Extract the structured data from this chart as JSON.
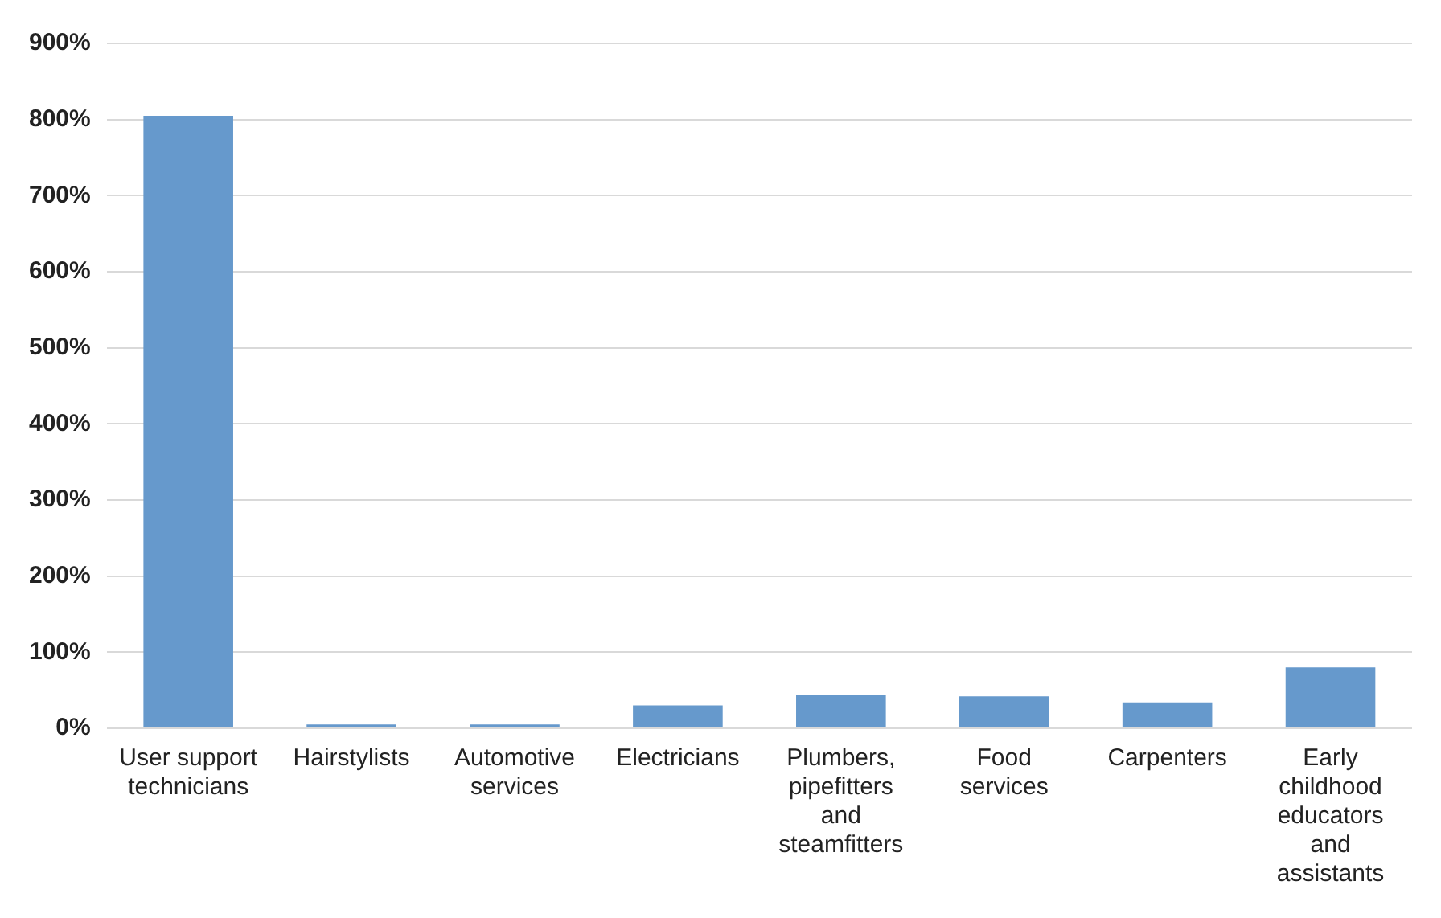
{
  "chart_data": {
    "type": "bar",
    "categories": [
      "User support technicians",
      "Hairstylists",
      "Automotive services",
      "Electricians",
      "Plumbers, pipefitters and steamfitters",
      "Food services",
      "Carpenters",
      "Early childhood educators and assistants"
    ],
    "values": [
      805,
      5,
      5,
      30,
      44,
      42,
      34,
      80
    ],
    "color": "#6699cc",
    "ylim": [
      0,
      900
    ],
    "yticks": [
      {
        "value": 0,
        "label": "0%"
      },
      {
        "value": 100,
        "label": "100%"
      },
      {
        "value": 200,
        "label": "200%"
      },
      {
        "value": 300,
        "label": "300%"
      },
      {
        "value": 400,
        "label": "400%"
      },
      {
        "value": 500,
        "label": "500%"
      },
      {
        "value": 600,
        "label": "600%"
      },
      {
        "value": 700,
        "label": "700%"
      },
      {
        "value": 800,
        "label": "800%"
      },
      {
        "value": 900,
        "label": "900%"
      }
    ],
    "grid": "y",
    "legend": false
  }
}
